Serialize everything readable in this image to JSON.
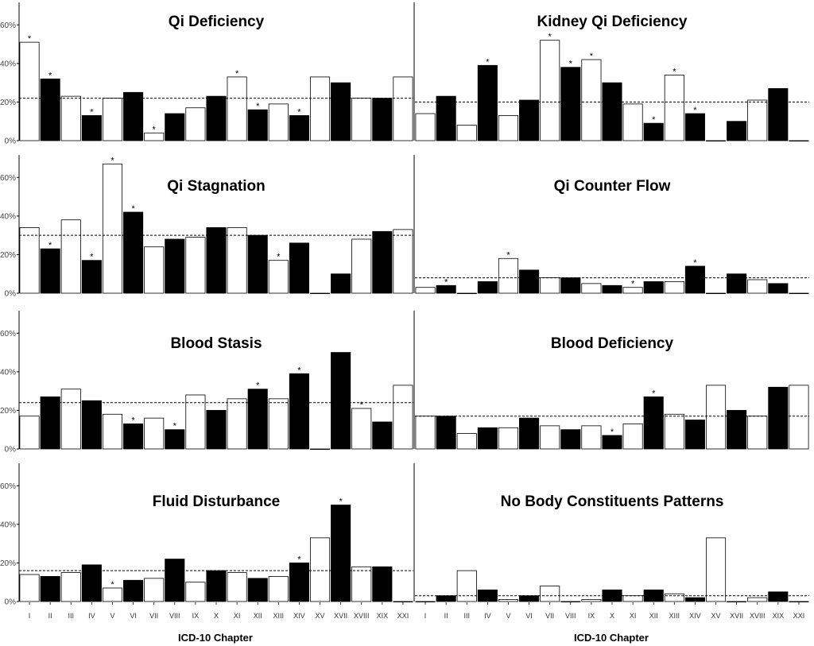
{
  "figure": {
    "xlabel_left": "ICD-10 Chapter",
    "xlabel_right": "ICD-10 Chapter"
  },
  "chart_data": [
    {
      "type": "bar",
      "title": "Qi Deficiency",
      "categories": [
        "I",
        "II",
        "III",
        "IV",
        "V",
        "VI",
        "VII",
        "VIII",
        "IX",
        "X",
        "XI",
        "XII",
        "XIII",
        "XIV",
        "XV",
        "XVII",
        "XVIII",
        "XIX",
        "XXI"
      ],
      "values": [
        51,
        32,
        23,
        13,
        22,
        25,
        4,
        14,
        17,
        23,
        33,
        16,
        19,
        13,
        33,
        30,
        22,
        22,
        33
      ],
      "fill": [
        "white",
        "black",
        "white",
        "black",
        "white",
        "black",
        "white",
        "black",
        "white",
        "black",
        "white",
        "black",
        "white",
        "black",
        "white",
        "black",
        "white",
        "black",
        "white"
      ],
      "significant": [
        true,
        true,
        false,
        true,
        false,
        false,
        true,
        false,
        false,
        false,
        true,
        true,
        false,
        true,
        false,
        false,
        false,
        false,
        false
      ],
      "reference_line": 22,
      "ylim": [
        0,
        70
      ],
      "yticks": [
        "0%",
        "20%",
        "40%",
        "60%"
      ],
      "ylabel": "",
      "xlabel": ""
    },
    {
      "type": "bar",
      "title": "Kidney Qi Deficiency",
      "categories": [
        "I",
        "II",
        "III",
        "IV",
        "V",
        "VI",
        "VII",
        "VIII",
        "IX",
        "X",
        "XI",
        "XII",
        "XIII",
        "XIV",
        "XV",
        "XVII",
        "XVIII",
        "XIX",
        "XXI"
      ],
      "values": [
        14,
        23,
        8,
        39,
        13,
        21,
        52,
        38,
        42,
        30,
        19,
        9,
        34,
        14,
        0,
        10,
        21,
        27,
        0
      ],
      "fill": [
        "white",
        "black",
        "white",
        "black",
        "white",
        "black",
        "white",
        "black",
        "white",
        "black",
        "white",
        "black",
        "white",
        "black",
        "white",
        "black",
        "white",
        "black",
        "white"
      ],
      "significant": [
        false,
        false,
        false,
        true,
        false,
        false,
        true,
        true,
        true,
        false,
        false,
        true,
        true,
        true,
        false,
        false,
        false,
        false,
        false
      ],
      "reference_line": 20,
      "ylim": [
        0,
        70
      ],
      "yticks": [
        "0%",
        "20%",
        "40%",
        "60%"
      ],
      "ylabel": "",
      "xlabel": ""
    },
    {
      "type": "bar",
      "title": "Qi Stagnation",
      "categories": [
        "I",
        "II",
        "III",
        "IV",
        "V",
        "VI",
        "VII",
        "VIII",
        "IX",
        "X",
        "XI",
        "XII",
        "XIII",
        "XIV",
        "XV",
        "XVII",
        "XVIII",
        "XIX",
        "XXI"
      ],
      "values": [
        34,
        23,
        38,
        17,
        67,
        42,
        24,
        28,
        29,
        34,
        34,
        30,
        17,
        26,
        0,
        10,
        28,
        32,
        33
      ],
      "fill": [
        "white",
        "black",
        "white",
        "black",
        "white",
        "black",
        "white",
        "black",
        "white",
        "black",
        "white",
        "black",
        "white",
        "black",
        "white",
        "black",
        "white",
        "black",
        "white"
      ],
      "significant": [
        false,
        true,
        false,
        true,
        true,
        true,
        false,
        false,
        false,
        false,
        false,
        false,
        true,
        false,
        false,
        false,
        false,
        false,
        false
      ],
      "reference_line": 30,
      "ylim": [
        0,
        70
      ],
      "yticks": [
        "0%",
        "20%",
        "40%",
        "60%"
      ],
      "ylabel": "",
      "xlabel": ""
    },
    {
      "type": "bar",
      "title": "Qi Counter Flow",
      "categories": [
        "I",
        "II",
        "III",
        "IV",
        "V",
        "VI",
        "VII",
        "VIII",
        "IX",
        "X",
        "XI",
        "XII",
        "XIII",
        "XIV",
        "XV",
        "XVII",
        "XVIII",
        "XIX",
        "XXI"
      ],
      "values": [
        3,
        4,
        0,
        6,
        18,
        12,
        8,
        8,
        5,
        4,
        3,
        6,
        6,
        14,
        0,
        10,
        7,
        5,
        0
      ],
      "fill": [
        "white",
        "black",
        "white",
        "black",
        "white",
        "black",
        "white",
        "black",
        "white",
        "black",
        "white",
        "black",
        "white",
        "black",
        "white",
        "black",
        "white",
        "black",
        "white"
      ],
      "significant": [
        false,
        true,
        false,
        false,
        true,
        false,
        false,
        false,
        false,
        false,
        true,
        false,
        false,
        true,
        false,
        false,
        false,
        false,
        false
      ],
      "reference_line": 8,
      "ylim": [
        0,
        70
      ],
      "yticks": [
        "0%",
        "20%",
        "40%",
        "60%"
      ],
      "ylabel": "",
      "xlabel": ""
    },
    {
      "type": "bar",
      "title": "Blood Stasis",
      "categories": [
        "I",
        "II",
        "III",
        "IV",
        "V",
        "VI",
        "VII",
        "VIII",
        "IX",
        "X",
        "XI",
        "XII",
        "XIII",
        "XIV",
        "XV",
        "XVII",
        "XVIII",
        "XIX",
        "XXI"
      ],
      "values": [
        17,
        27,
        31,
        25,
        18,
        13,
        16,
        10,
        28,
        20,
        26,
        31,
        26,
        39,
        0,
        50,
        21,
        14,
        33
      ],
      "fill": [
        "white",
        "black",
        "white",
        "black",
        "white",
        "black",
        "white",
        "black",
        "white",
        "black",
        "white",
        "black",
        "white",
        "black",
        "white",
        "black",
        "white",
        "black",
        "white"
      ],
      "significant": [
        false,
        false,
        false,
        false,
        false,
        true,
        false,
        true,
        false,
        false,
        false,
        true,
        false,
        true,
        false,
        false,
        true,
        false,
        false
      ],
      "reference_line": 24,
      "ylim": [
        0,
        70
      ],
      "yticks": [
        "0%",
        "20%",
        "40%",
        "60%"
      ],
      "ylabel": "",
      "xlabel": ""
    },
    {
      "type": "bar",
      "title": "Blood Deficiency",
      "categories": [
        "I",
        "II",
        "III",
        "IV",
        "V",
        "VI",
        "VII",
        "VIII",
        "IX",
        "X",
        "XI",
        "XII",
        "XIII",
        "XIV",
        "XV",
        "XVII",
        "XVIII",
        "XIX",
        "XXI"
      ],
      "values": [
        17,
        17,
        8,
        11,
        11,
        16,
        12,
        10,
        12,
        7,
        13,
        27,
        18,
        15,
        33,
        20,
        17,
        32,
        33
      ],
      "fill": [
        "white",
        "black",
        "white",
        "black",
        "white",
        "black",
        "white",
        "black",
        "white",
        "black",
        "white",
        "black",
        "white",
        "black",
        "white",
        "black",
        "white",
        "black",
        "white"
      ],
      "significant": [
        false,
        false,
        false,
        false,
        false,
        false,
        false,
        false,
        false,
        true,
        false,
        true,
        false,
        false,
        false,
        false,
        false,
        false,
        false
      ],
      "reference_line": 17,
      "ylim": [
        0,
        70
      ],
      "yticks": [
        "0%",
        "20%",
        "40%",
        "60%"
      ],
      "ylabel": "",
      "xlabel": ""
    },
    {
      "type": "bar",
      "title": "Fluid Disturbance",
      "categories": [
        "I",
        "II",
        "III",
        "IV",
        "V",
        "VI",
        "VII",
        "VIII",
        "IX",
        "X",
        "XI",
        "XII",
        "XIII",
        "XIV",
        "XV",
        "XVII",
        "XVIII",
        "XIX",
        "XXI"
      ],
      "values": [
        14,
        13,
        15,
        19,
        7,
        11,
        12,
        22,
        10,
        16,
        15,
        12,
        13,
        20,
        33,
        50,
        18,
        18,
        0
      ],
      "fill": [
        "white",
        "black",
        "white",
        "black",
        "white",
        "black",
        "white",
        "black",
        "white",
        "black",
        "white",
        "black",
        "white",
        "black",
        "white",
        "black",
        "white",
        "black",
        "white"
      ],
      "significant": [
        false,
        false,
        false,
        false,
        true,
        false,
        false,
        false,
        false,
        false,
        false,
        false,
        false,
        true,
        false,
        true,
        false,
        false,
        false
      ],
      "reference_line": 16,
      "ylim": [
        0,
        70
      ],
      "yticks": [
        "0%",
        "20%",
        "40%",
        "60%"
      ],
      "ylabel": "",
      "xlabel": "ICD-10 Chapter"
    },
    {
      "type": "bar",
      "title": "No Body Constituents Patterns",
      "categories": [
        "I",
        "II",
        "III",
        "IV",
        "V",
        "VI",
        "VII",
        "VIII",
        "IX",
        "X",
        "XI",
        "XII",
        "XIII",
        "XIV",
        "XV",
        "XVII",
        "XVIII",
        "XIX",
        "XXI"
      ],
      "values": [
        0,
        3,
        16,
        6,
        1,
        3,
        8,
        0,
        1,
        6,
        3,
        6,
        4,
        2,
        33,
        0,
        2,
        5,
        0
      ],
      "fill": [
        "white",
        "black",
        "white",
        "black",
        "white",
        "black",
        "white",
        "black",
        "white",
        "black",
        "white",
        "black",
        "white",
        "black",
        "white",
        "black",
        "white",
        "black",
        "white"
      ],
      "significant": [
        false,
        false,
        false,
        false,
        false,
        false,
        false,
        false,
        false,
        false,
        false,
        false,
        false,
        false,
        false,
        false,
        false,
        false,
        false
      ],
      "reference_line": 3,
      "ylim": [
        0,
        70
      ],
      "yticks": [
        "0%",
        "20%",
        "40%",
        "60%"
      ],
      "ylabel": "",
      "xlabel": "ICD-10 Chapter"
    }
  ]
}
